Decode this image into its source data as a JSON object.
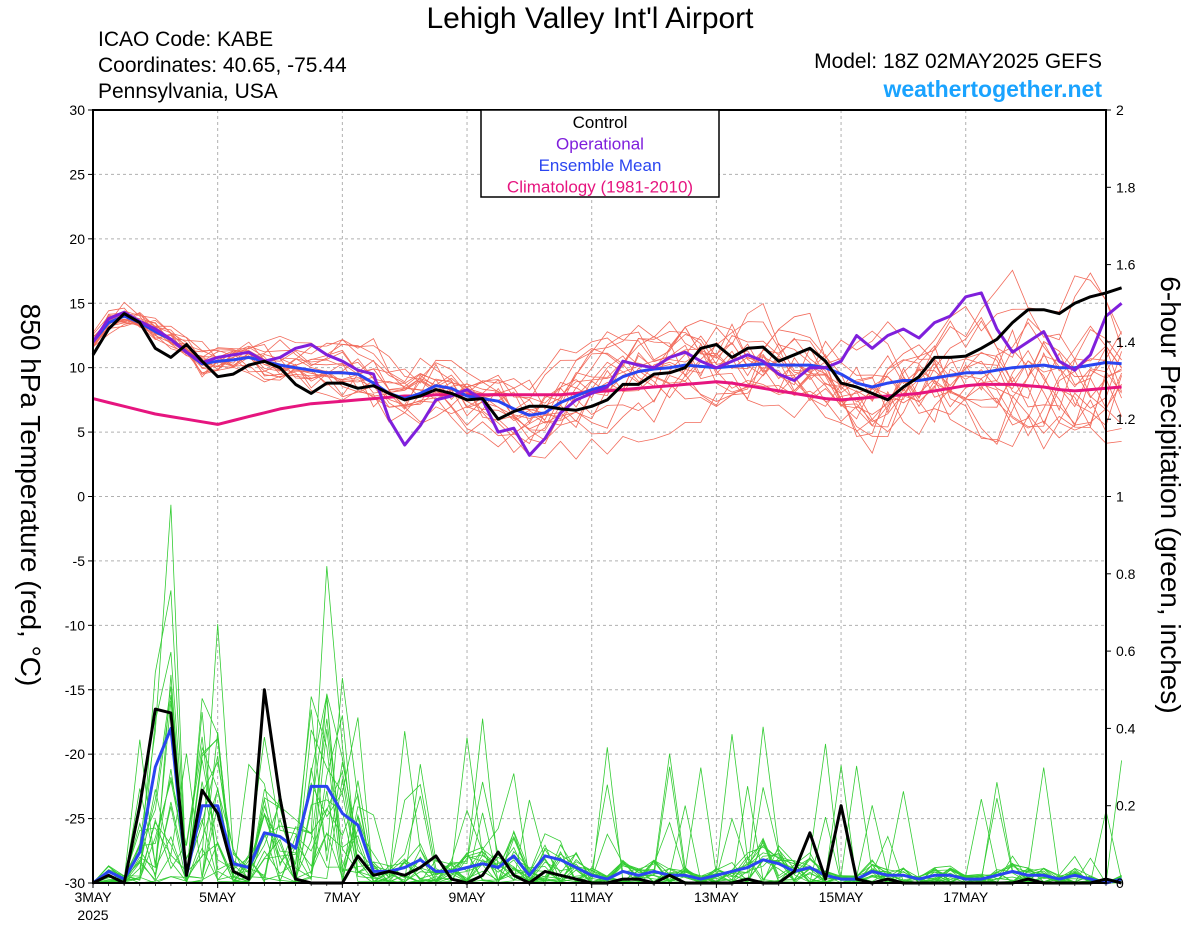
{
  "header": {
    "title": "Lehigh Valley Int'l Airport",
    "icao": "ICAO Code: KABE",
    "coords": "Coordinates: 40.65, -75.44",
    "region": "Pennsylvania, USA",
    "model": "Model: 18Z 02MAY2025 GEFS",
    "site": "weathertogether.net"
  },
  "colors": {
    "members_temp": "#f26a5a",
    "members_precip": "#33cc33",
    "control": "#000000",
    "operational": "#7f1fdc",
    "ensemble_mean": "#2a45f0",
    "climatology": "#e6157f",
    "grid": "#b0b0b0"
  },
  "chart_data": {
    "type": "line",
    "title": "Lehigh Valley Int'l Airport",
    "ylabel": "850 hPa Temperature (red, °C)",
    "y2label": "6-hour Precipitation (green, inches)",
    "ylim": [
      -30,
      30
    ],
    "y2lim": [
      0,
      2
    ],
    "xlim": [
      0,
      16.25
    ],
    "x_unit": "days after 3MAY 2025 00Z",
    "yticks": [
      "30",
      "25",
      "20",
      "15",
      "10",
      "5",
      "0",
      "-5",
      "-10",
      "-15",
      "-20",
      "-25",
      "-30"
    ],
    "y2ticks": [
      "2",
      "1.8",
      "1.6",
      "1.4",
      "1.2",
      "1",
      "0.8",
      "0.6",
      "0.4",
      "0.2",
      "0"
    ],
    "xticks": [
      {
        "x": 0,
        "label": "3MAY",
        "sub": "2025"
      },
      {
        "x": 2,
        "label": "5MAY"
      },
      {
        "x": 4,
        "label": "7MAY"
      },
      {
        "x": 6,
        "label": "9MAY"
      },
      {
        "x": 8,
        "label": "11MAY"
      },
      {
        "x": 10,
        "label": "13MAY"
      },
      {
        "x": 12,
        "label": "15MAY"
      },
      {
        "x": 14,
        "label": "17MAY"
      }
    ],
    "grid": true,
    "legend_position": "top-center",
    "legend": [
      {
        "label": "Control",
        "color": "#000000"
      },
      {
        "label": "Operational",
        "color": "#7f1fdc"
      },
      {
        "label": "Ensemble Mean",
        "color": "#2a45f0"
      },
      {
        "label": "Climatology (1981-2010)",
        "color": "#e6157f"
      }
    ],
    "step": 0.25,
    "series": [
      {
        "name": "Control",
        "axis": "temp",
        "color": "#000000",
        "width": 3,
        "values": [
          11.0,
          13.0,
          14.2,
          13.5,
          11.5,
          10.8,
          11.8,
          10.5,
          9.3,
          9.5,
          10.2,
          10.5,
          10.0,
          8.7,
          8.0,
          8.8,
          8.8,
          8.4,
          8.6,
          8.0,
          7.5,
          7.8,
          8.3,
          8.0,
          7.5,
          7.6,
          6.0,
          6.6,
          7.0,
          7.0,
          6.8,
          6.7,
          7.0,
          7.5,
          8.7,
          8.7,
          9.5,
          9.6,
          10.0,
          11.5,
          11.8,
          10.8,
          11.5,
          11.6,
          10.5,
          11.0,
          11.5,
          10.5,
          8.8,
          8.5,
          8.0,
          7.5,
          8.5,
          9.3,
          10.8,
          10.8,
          10.9,
          11.5,
          12.2,
          13.5,
          14.5,
          14.5,
          14.2,
          15.0,
          15.5,
          15.8,
          16.2
        ]
      },
      {
        "name": "Operational",
        "axis": "temp",
        "color": "#7f1fdc",
        "width": 3,
        "values": [
          12.0,
          13.8,
          14.3,
          13.6,
          13.0,
          12.2,
          11.2,
          10.4,
          10.8,
          11.0,
          11.2,
          10.5,
          10.8,
          11.5,
          11.8,
          11.0,
          10.5,
          9.8,
          9.5,
          6.0,
          4.0,
          5.5,
          7.5,
          7.8,
          8.3,
          7.5,
          5.0,
          5.3,
          3.2,
          4.5,
          6.5,
          7.5,
          8.0,
          8.5,
          10.5,
          10.2,
          10.0,
          10.8,
          11.2,
          10.5,
          10.0,
          10.5,
          11.0,
          10.5,
          9.5,
          9.0,
          10.0,
          10.0,
          10.5,
          12.5,
          11.5,
          12.5,
          13.0,
          12.3,
          13.5,
          14.0,
          15.5,
          15.8,
          13.0,
          11.2,
          12.0,
          12.8,
          10.5,
          9.8,
          11.0,
          14.0,
          15.0
        ]
      },
      {
        "name": "Ensemble Mean",
        "axis": "temp",
        "color": "#2a45f0",
        "width": 3,
        "values": [
          12.0,
          13.5,
          14.0,
          13.5,
          12.8,
          12.2,
          11.2,
          10.3,
          10.5,
          10.6,
          10.8,
          10.5,
          10.2,
          10.0,
          9.8,
          9.6,
          9.6,
          9.5,
          8.8,
          8.0,
          7.6,
          8.0,
          8.6,
          8.4,
          7.8,
          7.6,
          7.4,
          6.8,
          6.3,
          6.5,
          7.3,
          7.8,
          8.3,
          8.6,
          9.3,
          9.7,
          9.9,
          10.0,
          10.2,
          10.1,
          10.0,
          10.1,
          10.2,
          10.3,
          10.2,
          10.2,
          10.2,
          10.0,
          9.5,
          8.8,
          8.5,
          8.8,
          9.0,
          9.0,
          9.2,
          9.4,
          9.6,
          9.6,
          9.8,
          10.0,
          10.1,
          10.2,
          10.0,
          10.0,
          10.2,
          10.4,
          10.3
        ]
      },
      {
        "name": "Climatology (1981-2010)",
        "axis": "temp",
        "color": "#e6157f",
        "width": 3,
        "values": [
          7.6,
          7.3,
          7.0,
          6.7,
          6.4,
          6.2,
          6.0,
          5.8,
          5.6,
          5.9,
          6.2,
          6.5,
          6.8,
          7.0,
          7.2,
          7.3,
          7.4,
          7.5,
          7.6,
          7.7,
          7.8,
          7.8,
          7.9,
          7.9,
          7.9,
          7.9,
          7.9,
          7.9,
          7.9,
          7.9,
          7.9,
          8.0,
          8.1,
          8.2,
          8.3,
          8.4,
          8.5,
          8.6,
          8.7,
          8.8,
          8.9,
          8.8,
          8.6,
          8.4,
          8.2,
          8.0,
          7.8,
          7.6,
          7.5,
          7.6,
          7.7,
          7.8,
          7.9,
          8.0,
          8.2,
          8.4,
          8.6,
          8.7,
          8.7,
          8.7,
          8.6,
          8.5,
          8.3,
          8.2,
          8.3,
          8.4,
          8.5
        ]
      },
      {
        "name": "Control",
        "axis": "precip",
        "color": "#000000",
        "width": 3,
        "values": [
          0.0,
          0.02,
          0.0,
          0.2,
          0.45,
          0.44,
          0.02,
          0.24,
          0.18,
          0.03,
          0.01,
          0.5,
          0.22,
          0.01,
          0.0,
          0.0,
          0.0,
          0.07,
          0.02,
          0.03,
          0.02,
          0.04,
          0.07,
          0.01,
          0.0,
          0.02,
          0.08,
          0.02,
          0.0,
          0.03,
          0.02,
          0.01,
          0.0,
          0.0,
          0.01,
          0.01,
          0.0,
          0.02,
          0.0,
          0.0,
          0.0,
          0.0,
          0.01,
          0.0,
          0.0,
          0.03,
          0.13,
          0.01,
          0.2,
          0.01,
          0.0,
          0.01,
          0.0,
          0.0,
          0.0,
          0.0,
          0.0,
          0.0,
          0.0,
          0.0,
          0.01,
          0.0,
          0.0,
          0.0,
          0.0,
          0.01,
          0.0
        ]
      },
      {
        "name": "Ensemble Mean",
        "axis": "precip",
        "color": "#2a45f0",
        "width": 3,
        "values": [
          0.0,
          0.03,
          0.01,
          0.08,
          0.3,
          0.4,
          0.02,
          0.2,
          0.2,
          0.05,
          0.04,
          0.13,
          0.12,
          0.09,
          0.25,
          0.25,
          0.18,
          0.15,
          0.03,
          0.03,
          0.04,
          0.06,
          0.03,
          0.03,
          0.04,
          0.05,
          0.04,
          0.07,
          0.02,
          0.07,
          0.06,
          0.04,
          0.02,
          0.01,
          0.03,
          0.02,
          0.03,
          0.02,
          0.02,
          0.01,
          0.02,
          0.03,
          0.04,
          0.06,
          0.05,
          0.03,
          0.04,
          0.02,
          0.01,
          0.01,
          0.03,
          0.02,
          0.02,
          0.01,
          0.02,
          0.02,
          0.01,
          0.01,
          0.02,
          0.03,
          0.02,
          0.02,
          0.01,
          0.02,
          0.01,
          0.0,
          0.01
        ]
      }
    ]
  }
}
